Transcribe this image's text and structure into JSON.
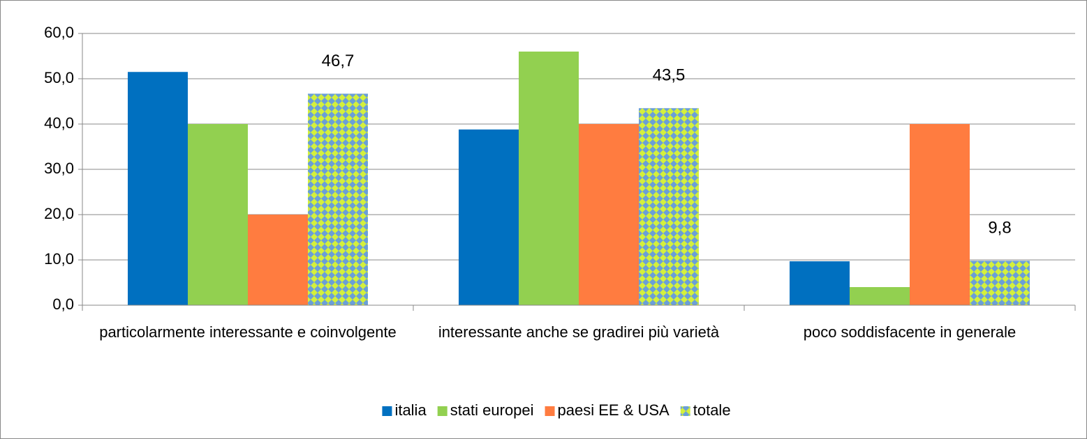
{
  "chart_data": {
    "type": "bar",
    "categories": [
      "particolarmente interessante e coinvolgente",
      "interessante anche se gradirei più varietà",
      "poco soddisfacente in generale"
    ],
    "series": [
      {
        "name": "italia",
        "color": "#0070c0",
        "values": [
          51.5,
          38.8,
          9.7
        ]
      },
      {
        "name": "stati europei",
        "color": "#92d050",
        "values": [
          40.0,
          56.0,
          4.0
        ]
      },
      {
        "name": "paesi EE & USA",
        "color": "#ff7c40",
        "values": [
          20.0,
          40.0,
          40.0
        ]
      },
      {
        "name": "totale",
        "color": "#d4f03c",
        "pattern_color": "#6a9fd8",
        "values": [
          46.7,
          43.5,
          9.8
        ],
        "value_labels": [
          "46,7",
          "43,5",
          "9,8"
        ]
      }
    ],
    "ylim": [
      0,
      60
    ],
    "yticks": [
      {
        "value": 0,
        "label": "0,0"
      },
      {
        "value": 10,
        "label": "10,0"
      },
      {
        "value": 20,
        "label": "20,0"
      },
      {
        "value": 30,
        "label": "30,0"
      },
      {
        "value": 40,
        "label": "40,0"
      },
      {
        "value": 50,
        "label": "50,0"
      },
      {
        "value": 60,
        "label": "60,0"
      }
    ],
    "grid": true,
    "legend": "bottom"
  }
}
